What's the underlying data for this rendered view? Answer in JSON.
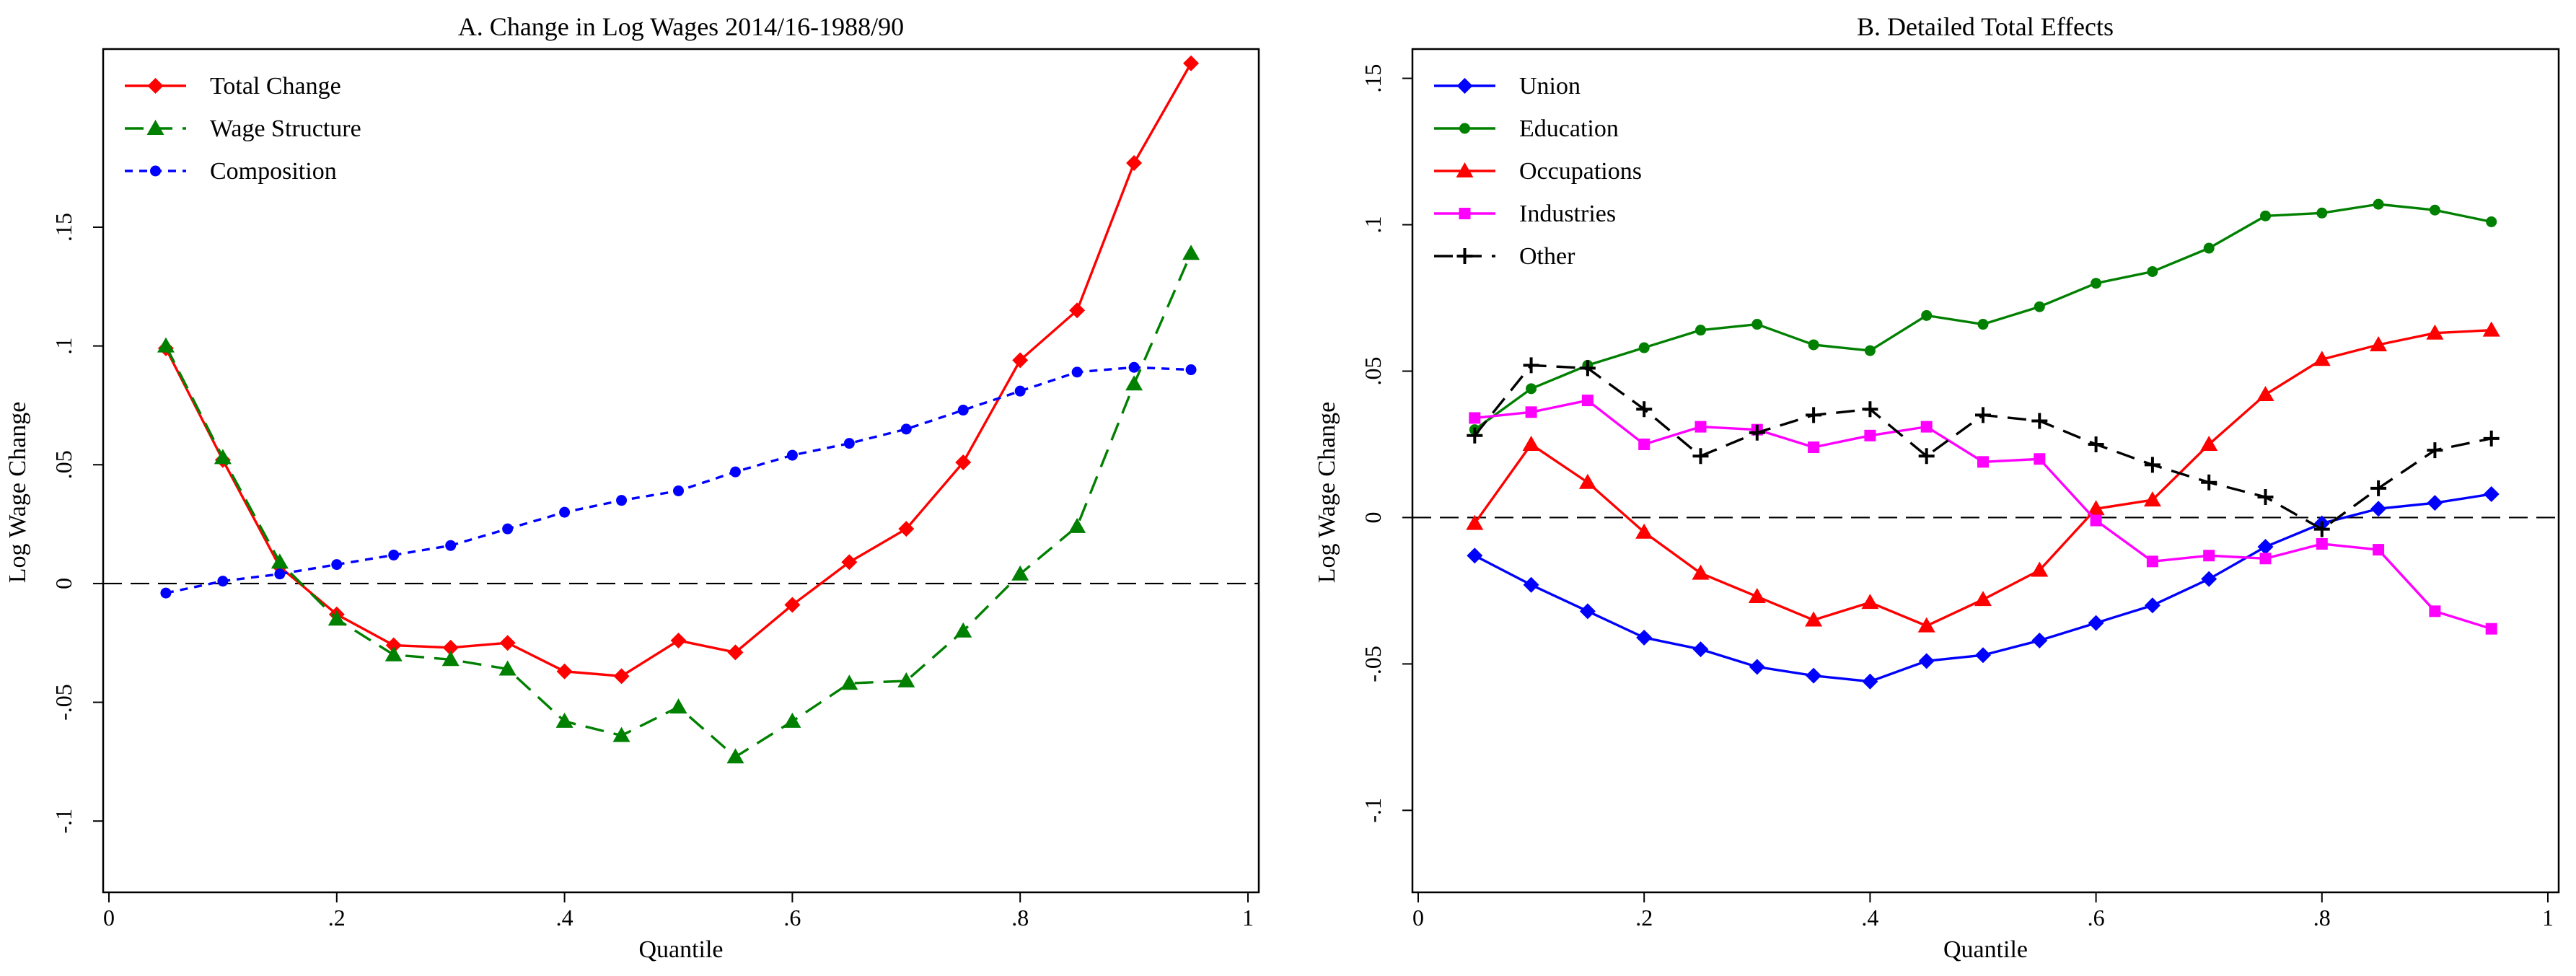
{
  "chart_data": [
    {
      "type": "line",
      "title": "A. Change in Log Wages 2014/16-1988/90",
      "xlabel": "Quantile",
      "ylabel": "Log Wage Change",
      "xlim": [
        0,
        1
      ],
      "ylim": [
        -0.13,
        0.225
      ],
      "xticks": [
        0,
        0.2,
        0.4,
        0.6,
        0.8,
        1
      ],
      "xtick_labels": [
        "0",
        ".2",
        ".4",
        ".6",
        ".8",
        "1"
      ],
      "yticks": [
        -0.1,
        -0.05,
        0,
        0.05,
        0.1,
        0.15
      ],
      "ytick_labels": [
        "-.1",
        "-.05",
        "0",
        ".05",
        ".1",
        ".15"
      ],
      "reference_line_y": 0,
      "legend_position": "top-left",
      "x": [
        0.05,
        0.1,
        0.15,
        0.2,
        0.25,
        0.3,
        0.35,
        0.4,
        0.45,
        0.5,
        0.55,
        0.6,
        0.65,
        0.7,
        0.75,
        0.8,
        0.85,
        0.9,
        0.95
      ],
      "series": [
        {
          "name": "Total Change",
          "color": "#ff0000",
          "marker": "diamond",
          "dash": "solid",
          "values": [
            0.099,
            0.052,
            0.007,
            -0.013,
            -0.026,
            -0.027,
            -0.025,
            -0.037,
            -0.039,
            -0.024,
            -0.029,
            -0.009,
            0.009,
            0.023,
            0.051,
            0.094,
            0.115,
            0.177,
            0.219
          ]
        },
        {
          "name": "Wage Structure",
          "color": "#008000",
          "marker": "triangle",
          "dash": "longdash",
          "values": [
            0.1,
            0.053,
            0.009,
            -0.015,
            -0.03,
            -0.032,
            -0.036,
            -0.058,
            -0.064,
            -0.052,
            -0.073,
            -0.058,
            -0.042,
            -0.041,
            -0.02,
            0.004,
            0.024,
            0.084,
            0.139
          ]
        },
        {
          "name": "Composition",
          "color": "#0000ff",
          "marker": "circle",
          "dash": "shortdash",
          "values": [
            -0.004,
            0.001,
            0.004,
            0.008,
            0.012,
            0.016,
            0.023,
            0.03,
            0.035,
            0.039,
            0.047,
            0.054,
            0.059,
            0.065,
            0.073,
            0.081,
            0.089,
            0.091,
            0.09
          ]
        }
      ]
    },
    {
      "type": "line",
      "title": "B. Detailed Total Effects",
      "xlabel": "Quantile",
      "ylabel": "Log Wage Change",
      "xlim": [
        0,
        1
      ],
      "ylim": [
        -0.128,
        0.16
      ],
      "xticks": [
        0,
        0.2,
        0.4,
        0.6,
        0.8,
        1
      ],
      "xtick_labels": [
        "0",
        ".2",
        ".4",
        ".6",
        ".8",
        "1"
      ],
      "yticks": [
        -0.1,
        -0.05,
        0,
        0.05,
        0.1,
        0.15
      ],
      "ytick_labels": [
        "-.1",
        "-.05",
        "0",
        ".05",
        ".1",
        ".15"
      ],
      "reference_line_y": 0,
      "legend_position": "top-left",
      "x": [
        0.05,
        0.1,
        0.15,
        0.2,
        0.25,
        0.3,
        0.35,
        0.4,
        0.45,
        0.5,
        0.55,
        0.6,
        0.65,
        0.7,
        0.75,
        0.8,
        0.85,
        0.9,
        0.95
      ],
      "series": [
        {
          "name": "Union",
          "color": "#0000ff",
          "marker": "diamond",
          "dash": "solid",
          "values": [
            -0.013,
            -0.023,
            -0.032,
            -0.041,
            -0.045,
            -0.051,
            -0.054,
            -0.056,
            -0.049,
            -0.047,
            -0.042,
            -0.036,
            -0.03,
            -0.021,
            -0.01,
            -0.002,
            0.003,
            0.005,
            0.008
          ]
        },
        {
          "name": "Education",
          "color": "#008000",
          "marker": "circle",
          "dash": "solid",
          "values": [
            0.03,
            0.044,
            0.052,
            0.058,
            0.064,
            0.066,
            0.059,
            0.057,
            0.069,
            0.066,
            0.072,
            0.08,
            0.084,
            0.092,
            0.103,
            0.104,
            0.107,
            0.105,
            0.101
          ]
        },
        {
          "name": "Occupations",
          "color": "#ff0000",
          "marker": "triangle",
          "dash": "solid",
          "values": [
            -0.002,
            0.025,
            0.012,
            -0.005,
            -0.019,
            -0.027,
            -0.035,
            -0.029,
            -0.037,
            -0.028,
            -0.018,
            0.003,
            0.006,
            0.025,
            0.042,
            0.054,
            0.059,
            0.063,
            0.064
          ]
        },
        {
          "name": "Industries",
          "color": "#ff00ff",
          "marker": "square",
          "dash": "solid",
          "values": [
            0.034,
            0.036,
            0.04,
            0.025,
            0.031,
            0.03,
            0.024,
            0.028,
            0.031,
            0.019,
            0.02,
            -0.001,
            -0.015,
            -0.013,
            -0.014,
            -0.009,
            -0.011,
            -0.032,
            -0.038
          ]
        },
        {
          "name": "Other",
          "color": "#000000",
          "marker": "plus",
          "dash": "longdash",
          "values": [
            0.028,
            0.052,
            0.051,
            0.037,
            0.021,
            0.029,
            0.035,
            0.037,
            0.021,
            0.035,
            0.033,
            0.025,
            0.018,
            0.012,
            0.007,
            -0.004,
            0.01,
            0.023,
            0.027
          ]
        }
      ]
    }
  ]
}
